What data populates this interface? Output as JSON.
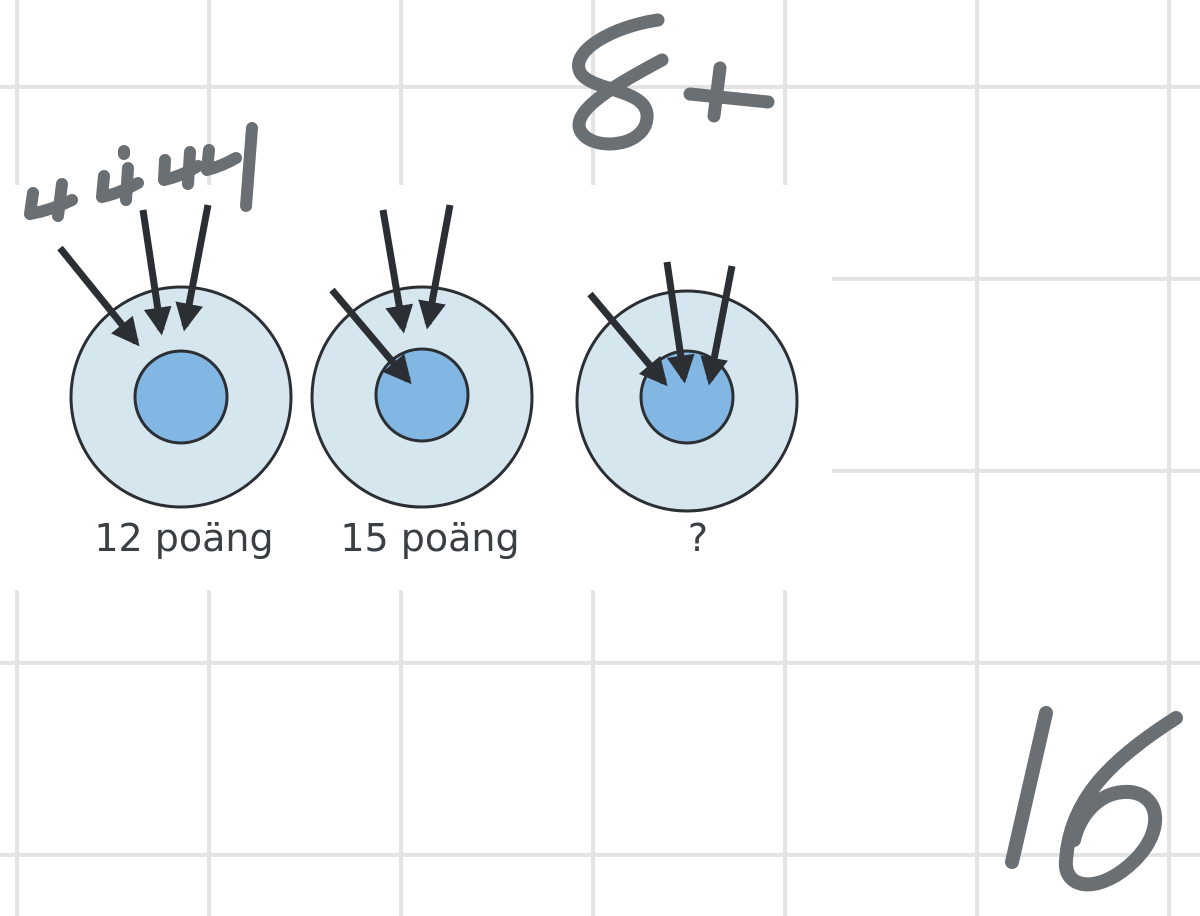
{
  "notebook": {
    "grid_color": "#e4e4e4",
    "ink_color": "#6a6f73"
  },
  "figure": {
    "outer_ring_color": "#d5e6ef",
    "inner_ring_color": "#82b7e3",
    "outline_color": "#2b2f33",
    "arrow_color": "#2b2f33",
    "targets": [
      {
        "label": "12 poäng",
        "hits": [
          "outer",
          "outer",
          "outer"
        ]
      },
      {
        "label": "15 poäng",
        "hits": [
          "inner",
          "outer",
          "outer"
        ]
      },
      {
        "label": "?",
        "hits": [
          "inner",
          "inner",
          "inner"
        ]
      }
    ]
  },
  "handwriting": {
    "note_top_left": "4 4 4",
    "note_top_center": "8 +",
    "note_bottom_right": "16"
  }
}
